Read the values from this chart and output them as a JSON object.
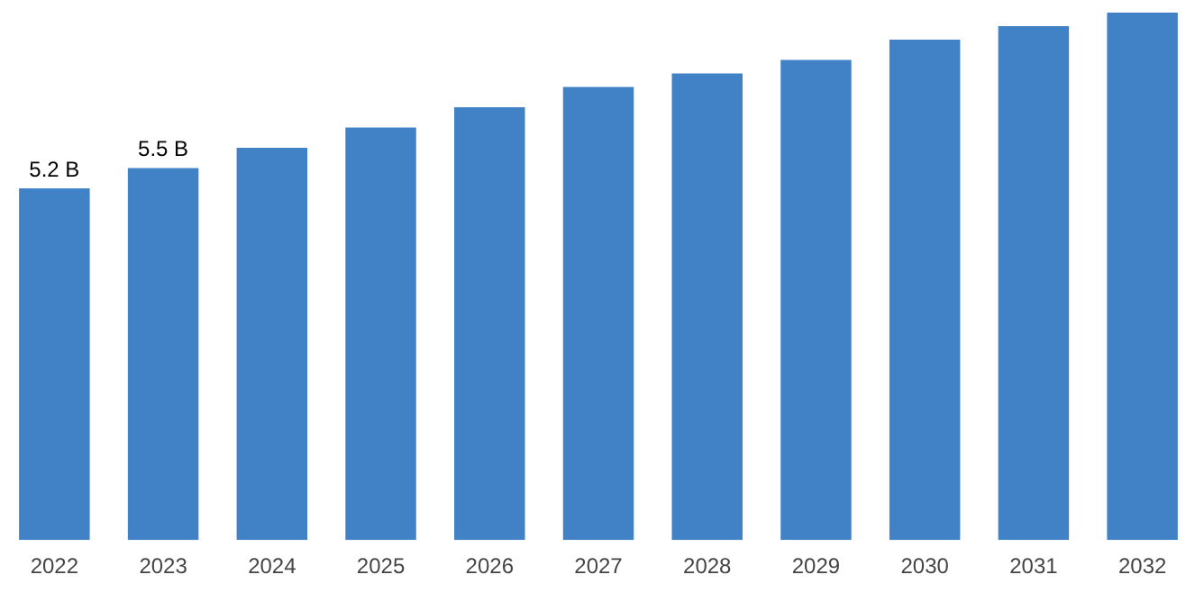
{
  "chart_data": {
    "type": "bar",
    "categories": [
      "2022",
      "2023",
      "2024",
      "2025",
      "2026",
      "2027",
      "2028",
      "2029",
      "2030",
      "2031",
      "2032"
    ],
    "values": [
      5.2,
      5.5,
      5.8,
      6.1,
      6.4,
      6.7,
      6.9,
      7.1,
      7.4,
      7.6,
      7.8
    ],
    "value_labels": [
      "5.2 B",
      "5.5 B",
      null,
      null,
      null,
      null,
      null,
      null,
      null,
      null,
      null
    ],
    "color": "#4181c5",
    "grid": false,
    "legend": false,
    "tick_labels": "x"
  }
}
